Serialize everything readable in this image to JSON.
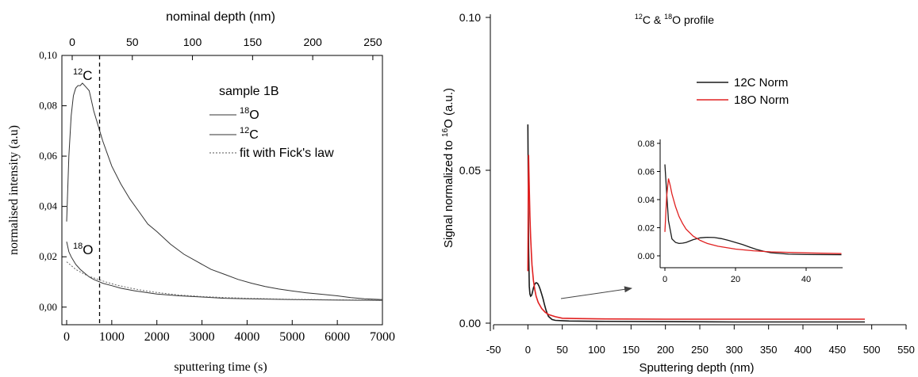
{
  "chart_data": [
    {
      "id": "left",
      "type": "line",
      "title": "",
      "xlabel": "sputtering time (s)",
      "ylabel": "normalised intensity (a.u)",
      "top_axis_label": "nominal depth (nm)",
      "xlim": [
        0,
        7000
      ],
      "ylim": [
        -0.007,
        0.1
      ],
      "top_xlim": [
        0,
        256
      ],
      "x_ticks": [
        "0",
        "1000",
        "2000",
        "3000",
        "4000",
        "5000",
        "6000",
        "7000"
      ],
      "y_ticks": [
        "0,00",
        "0,02",
        "0,04",
        "0,06",
        "0,08",
        "0,10"
      ],
      "top_ticks": [
        "0",
        "50",
        "100",
        "150",
        "200",
        "250"
      ],
      "legend_title": "sample 1B",
      "legend_entries": [
        {
          "sup": "18",
          "text": "O",
          "style": "solid"
        },
        {
          "sup": "12",
          "text": "C",
          "style": "solid"
        },
        {
          "sup": "",
          "text": "fit with Fick's law",
          "style": "dotted"
        }
      ],
      "legend_position": "upper-right",
      "annotations": [
        {
          "sup": "12",
          "text": "C"
        },
        {
          "sup": "18",
          "text": "O"
        }
      ],
      "vline_x": 730,
      "series": [
        {
          "x": [
            0,
            50,
            100,
            150,
            200,
            250,
            300,
            350,
            400,
            450,
            500,
            550,
            600,
            700,
            800,
            900,
            1000,
            1200,
            1400,
            1600,
            1800,
            2000,
            2300,
            2600,
            2900,
            3200,
            3500,
            3800,
            4100,
            4400,
            4700,
            5000,
            5300,
            5600,
            6000,
            6300,
            6600,
            7000
          ],
          "y": [
            0.034,
            0.06,
            0.076,
            0.084,
            0.087,
            0.088,
            0.088,
            0.089,
            0.088,
            0.087,
            0.086,
            0.082,
            0.078,
            0.072,
            0.066,
            0.061,
            0.056,
            0.049,
            0.043,
            0.038,
            0.033,
            0.03,
            0.025,
            0.021,
            0.018,
            0.015,
            0.013,
            0.011,
            0.0095,
            0.0082,
            0.0072,
            0.0064,
            0.0057,
            0.0052,
            0.0045,
            0.0038,
            0.0033,
            0.003
          ]
        },
        {
          "x": [
            0,
            50,
            100,
            200,
            300,
            400,
            500,
            600,
            800,
            1000,
            1200,
            1500,
            2000,
            2500,
            3000,
            3500,
            4000,
            5000,
            6000,
            7000
          ],
          "y": [
            0.026,
            0.022,
            0.02,
            0.017,
            0.015,
            0.0135,
            0.012,
            0.011,
            0.0095,
            0.0085,
            0.0075,
            0.0065,
            0.0052,
            0.0045,
            0.004,
            0.0035,
            0.0033,
            0.003,
            0.0028,
            0.0027
          ]
        },
        {
          "x": [
            0,
            100,
            200,
            300,
            400,
            500,
            700,
            900,
            1100,
            1400,
            1700,
            2000,
            2500,
            3000,
            3500,
            4000,
            5000,
            6000,
            7000
          ],
          "y": [
            0.018,
            0.0165,
            0.015,
            0.014,
            0.013,
            0.0122,
            0.011,
            0.0098,
            0.0088,
            0.0076,
            0.0066,
            0.0058,
            0.0048,
            0.0042,
            0.0038,
            0.0035,
            0.0031,
            0.0029,
            0.0028
          ]
        }
      ]
    },
    {
      "id": "right",
      "type": "line",
      "title": {
        "sup1": "12",
        "t1": "C & ",
        "sup2": "18",
        "t2": "O profile"
      },
      "xlabel": "Sputtering depth (nm)",
      "ylabel": {
        "pre": "Signal normalized to ",
        "sup": "16",
        "post": "O (a.u.)"
      },
      "xlim": [
        -50,
        550
      ],
      "ylim": [
        -0.002,
        0.1
      ],
      "x_ticks": [
        "-50",
        "0",
        "50",
        "100",
        "150",
        "200",
        "250",
        "300",
        "350",
        "400",
        "450",
        "500",
        "550"
      ],
      "y_ticks": [
        "0.00",
        "0.05",
        "0.10"
      ],
      "legend_position": "upper-right",
      "colors": {
        "12C": "#1a1a1a",
        "18O": "#e02020"
      },
      "series": [
        {
          "name": "12C Norm",
          "x": [
            0,
            0.5,
            1,
            2,
            3,
            4,
            5,
            6,
            7,
            8,
            10,
            12,
            14,
            16,
            18,
            20,
            22,
            24,
            26,
            28,
            30,
            35,
            40,
            50,
            60,
            100,
            200,
            300,
            400,
            490
          ],
          "y": [
            0.065,
            0.045,
            0.025,
            0.012,
            0.0095,
            0.0088,
            0.009,
            0.0095,
            0.0105,
            0.0115,
            0.0128,
            0.0132,
            0.013,
            0.0122,
            0.011,
            0.0095,
            0.008,
            0.0062,
            0.0045,
            0.0032,
            0.0022,
            0.0012,
            0.0009,
            0.0008,
            0.0007,
            0.0006,
            0.0005,
            0.0004,
            0.0004,
            0.0004
          ]
        },
        {
          "name": "18O Norm",
          "x": [
            0,
            0.5,
            1,
            1.5,
            2,
            3,
            4,
            5,
            6,
            8,
            10,
            12,
            15,
            20,
            25,
            30,
            40,
            50,
            70,
            100,
            200,
            300,
            400,
            490
          ],
          "y": [
            0.017,
            0.042,
            0.055,
            0.05,
            0.044,
            0.035,
            0.028,
            0.023,
            0.019,
            0.014,
            0.011,
            0.0088,
            0.0068,
            0.0048,
            0.0036,
            0.0028,
            0.0021,
            0.0016,
            0.0015,
            0.0014,
            0.0013,
            0.0013,
            0.0013,
            0.0013
          ]
        }
      ],
      "inset": {
        "xlim": [
          -2,
          50
        ],
        "ylim": [
          -0.002,
          0.08
        ],
        "x_ticks": [
          "0",
          "20",
          "40"
        ],
        "y_ticks": [
          "0.00",
          "0.02",
          "0.04",
          "0.06",
          "0.08"
        ]
      }
    }
  ]
}
